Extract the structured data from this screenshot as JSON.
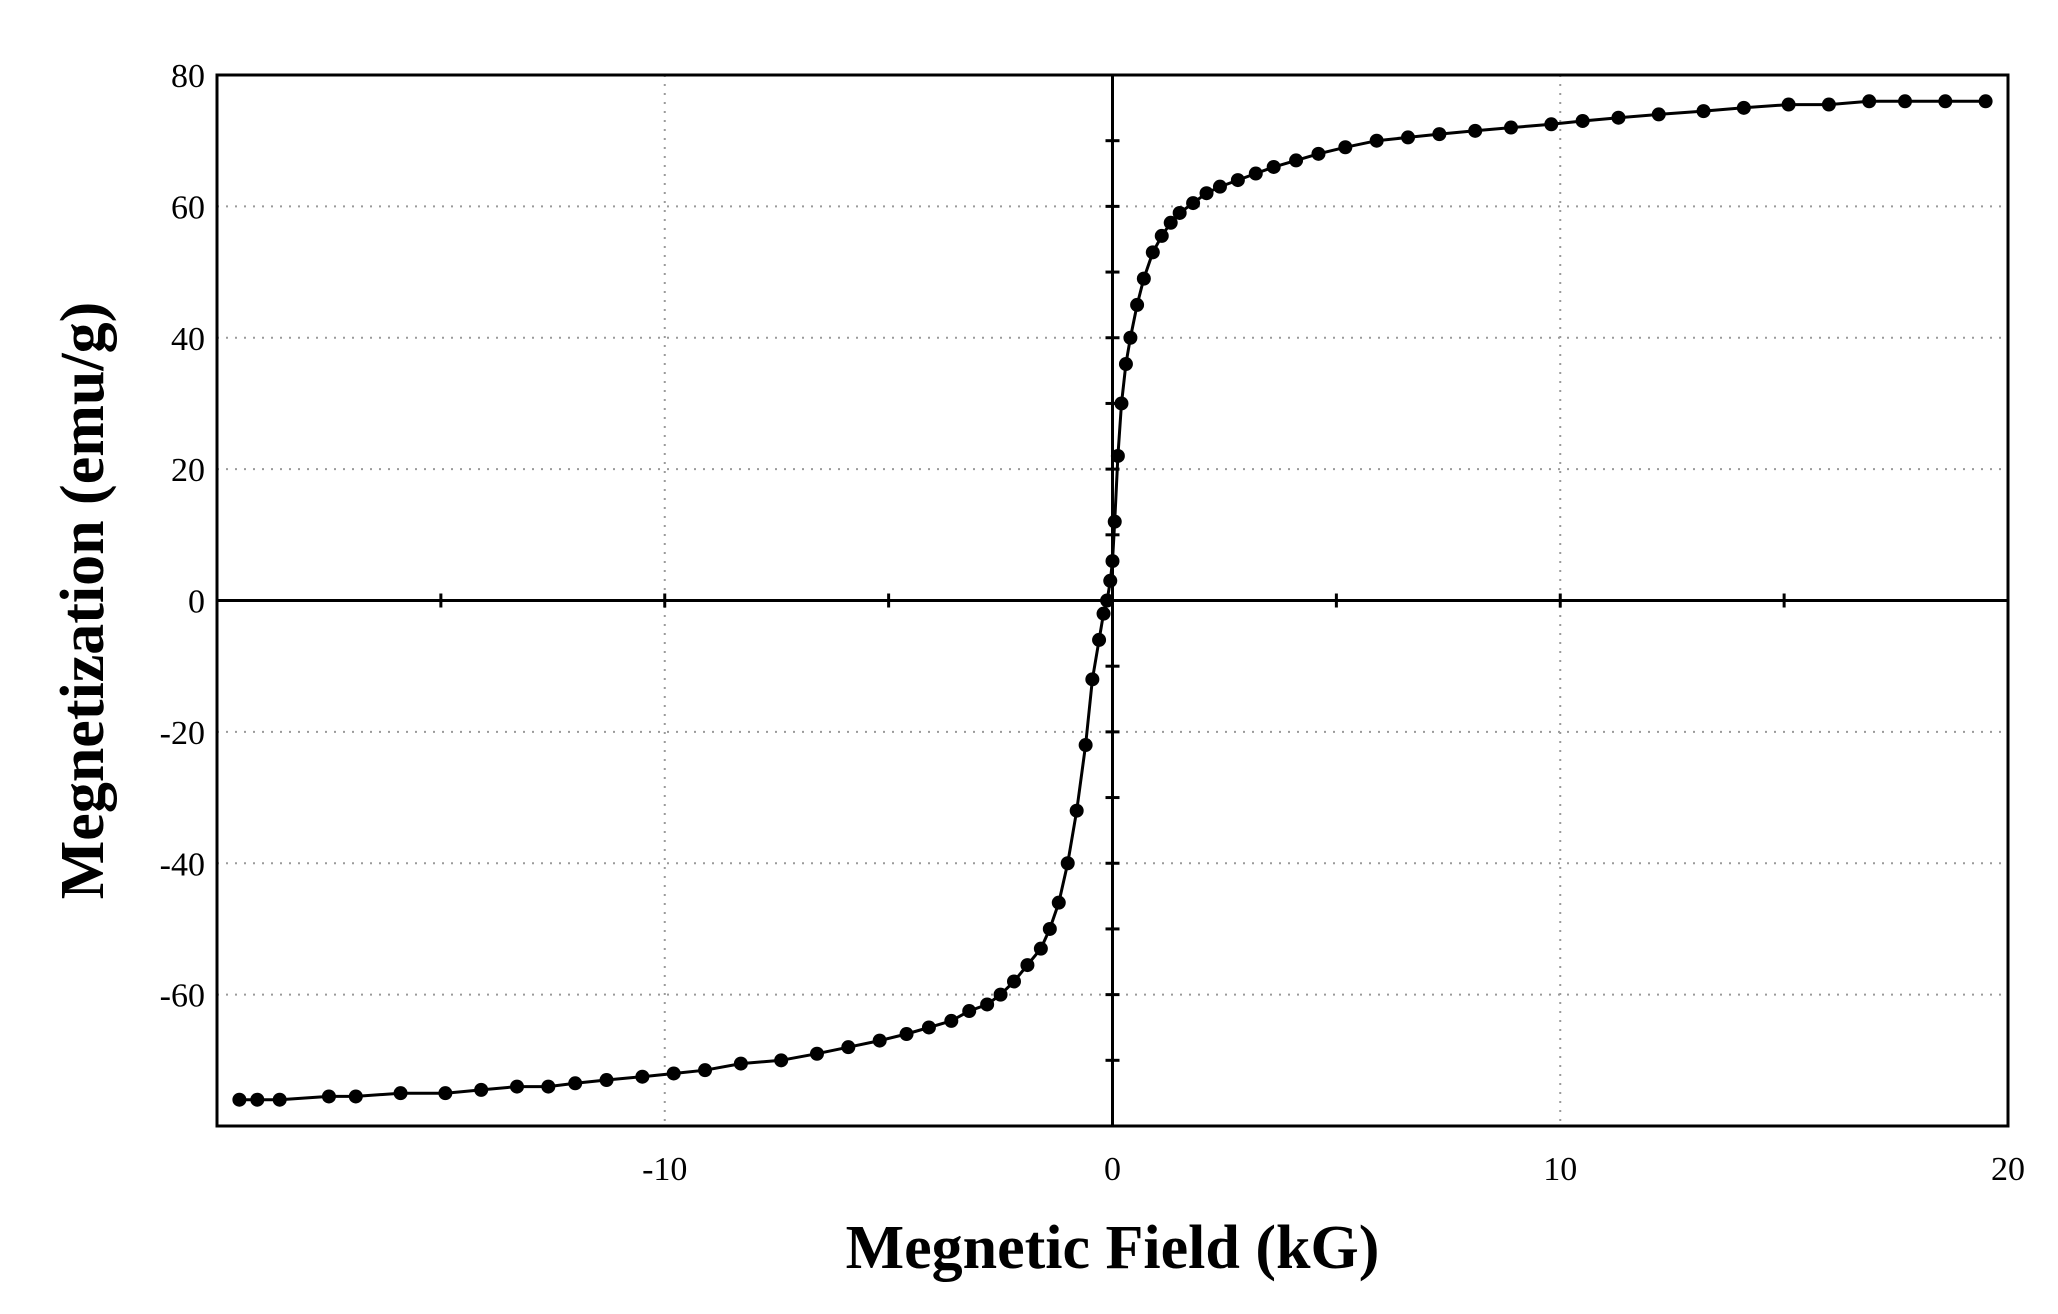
{
  "chart_data": {
    "type": "scatter",
    "title": "",
    "xlabel": "Megnetic Field  (kG)",
    "ylabel": "Megnetization (emu/g)",
    "xlim": [
      -20,
      20
    ],
    "ylim": [
      -80,
      80
    ],
    "x_ticks": [
      -10,
      0,
      10,
      20
    ],
    "y_ticks": [
      80,
      60,
      40,
      20,
      0,
      -20,
      -40,
      -60
    ],
    "grid": true,
    "legend": "none",
    "colors": {
      "line": "#000000",
      "marker": "#000000",
      "grid": "#9a9a9a"
    },
    "series": [
      {
        "x": [
          -19.5,
          -19.1,
          -18.6,
          -17.5,
          -16.9,
          -15.9,
          -14.9,
          -14.1,
          -13.3,
          -12.6,
          -12.0,
          -11.3,
          -10.5,
          -9.8,
          -9.1,
          -8.3,
          -7.4,
          -6.6,
          -5.9,
          -5.2,
          -4.6,
          -4.1,
          -3.6,
          -3.2,
          -2.8,
          -2.5,
          -2.2,
          -1.9,
          -1.6,
          -1.4,
          -1.2,
          -1.0,
          -0.8,
          -0.6,
          -0.45,
          -0.3,
          -0.2,
          -0.12,
          -0.05,
          0.0,
          0.05,
          0.12,
          0.2,
          0.3,
          0.4,
          0.55,
          0.7,
          0.9,
          1.1,
          1.3,
          1.5,
          1.8,
          2.1,
          2.4,
          2.8,
          3.2,
          3.6,
          4.1,
          4.6,
          5.2,
          5.9,
          6.6,
          7.3,
          8.1,
          8.9,
          9.8,
          10.5,
          11.3,
          12.2,
          13.2,
          14.1,
          15.1,
          16.0,
          16.9,
          17.7,
          18.6,
          19.5
        ],
        "y": [
          -76,
          -76,
          -76,
          -75.5,
          -75.5,
          -75,
          -75,
          -74.5,
          -74,
          -74,
          -73.5,
          -73,
          -72.5,
          -72,
          -71.5,
          -70.5,
          -70,
          -69,
          -68,
          -67,
          -66,
          -65,
          -64,
          -62.5,
          -61.5,
          -60,
          -58,
          -55.5,
          -53,
          -50,
          -46,
          -40,
          -32,
          -22,
          -12,
          -6,
          -2,
          0,
          3,
          6,
          12,
          22,
          30,
          36,
          40,
          45,
          49,
          53,
          55.5,
          57.5,
          59,
          60.5,
          62,
          63,
          64,
          65,
          66,
          67,
          68,
          69,
          70,
          70.5,
          71,
          71.5,
          72,
          72.5,
          73,
          73.5,
          74,
          74.5,
          75,
          75.5,
          75.5,
          76,
          76,
          76,
          76
        ]
      }
    ]
  }
}
